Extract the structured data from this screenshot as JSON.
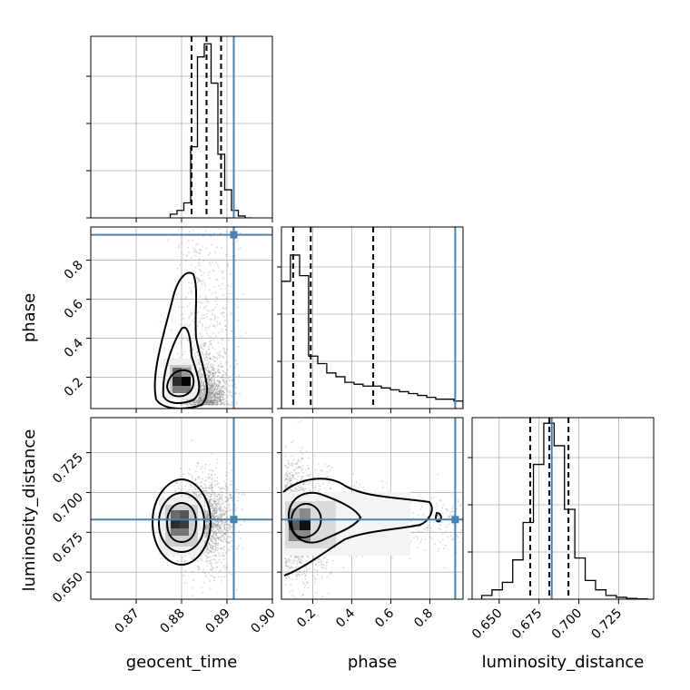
{
  "chart_data": {
    "type": "corner",
    "parameters": [
      "geocent_time",
      "phase",
      "luminosity_distance"
    ],
    "truths": {
      "geocent_time": 0.8915,
      "phase": 0.93,
      "luminosity_distance": 0.683
    },
    "colors": {
      "truth": "#4682b4",
      "hist": "#000000",
      "grid": "#b0b0b0",
      "scatter": "#808080"
    },
    "grid": true,
    "ranges": {
      "geocent_time": [
        0.86,
        0.9
      ],
      "phase": [
        0.04,
        0.97
      ],
      "luminosity_distance": [
        0.633,
        0.747
      ]
    },
    "ticks": {
      "geocent_time": [
        0.87,
        0.88,
        0.89,
        0.9
      ],
      "phase": [
        0.2,
        0.4,
        0.6,
        0.8
      ],
      "luminosity_distance": [
        0.65,
        0.675,
        0.7,
        0.725
      ]
    },
    "tick_labels": {
      "geocent_time": [
        "0.87",
        "0.88",
        "0.89",
        "0.90"
      ],
      "phase": [
        "0.2",
        "0.4",
        "0.6",
        "0.8"
      ],
      "luminosity_distance": [
        "0.650",
        "0.675",
        "0.700",
        "0.725"
      ]
    },
    "quantiles": {
      "geocent_time": [
        0.8822,
        0.8855,
        0.8887
      ],
      "phase": [
        0.1,
        0.19,
        0.51
      ],
      "luminosity_distance": [
        0.6695,
        0.6815,
        0.6935
      ]
    },
    "histograms": {
      "geocent_time": {
        "edges": [
          0.8775,
          0.879,
          0.8805,
          0.882,
          0.8835,
          0.885,
          0.8865,
          0.888,
          0.8895,
          0.891,
          0.8925,
          0.894,
          0.8955
        ],
        "counts": [
          0.02,
          0.04,
          0.08,
          0.38,
          0.86,
          0.93,
          0.72,
          0.34,
          0.15,
          0.04,
          0.01,
          0.0
        ]
      },
      "phase": {
        "edges": [
          0.04,
          0.086,
          0.133,
          0.179,
          0.226,
          0.272,
          0.319,
          0.365,
          0.412,
          0.458,
          0.505,
          0.551,
          0.598,
          0.644,
          0.691,
          0.737,
          0.784,
          0.83,
          0.877,
          0.923,
          0.97
        ],
        "counts": [
          0.68,
          0.82,
          0.71,
          0.28,
          0.24,
          0.19,
          0.17,
          0.14,
          0.13,
          0.12,
          0.12,
          0.11,
          0.1,
          0.09,
          0.08,
          0.07,
          0.06,
          0.05,
          0.05,
          0.04
        ]
      },
      "luminosity_distance": {
        "edges": [
          0.639,
          0.6455,
          0.652,
          0.6585,
          0.665,
          0.6715,
          0.678,
          0.6845,
          0.691,
          0.6975,
          0.704,
          0.7105,
          0.717,
          0.7235,
          0.73,
          0.7365,
          0.743
        ],
        "counts": [
          0.02,
          0.05,
          0.09,
          0.21,
          0.41,
          0.72,
          0.94,
          0.82,
          0.48,
          0.22,
          0.1,
          0.05,
          0.02,
          0.01,
          0.004,
          0.002
        ]
      }
    },
    "scatter_2d": [
      {
        "x": "geocent_time",
        "y": "phase"
      },
      {
        "x": "geocent_time",
        "y": "luminosity_distance"
      },
      {
        "x": "phase",
        "y": "luminosity_distance"
      }
    ]
  }
}
